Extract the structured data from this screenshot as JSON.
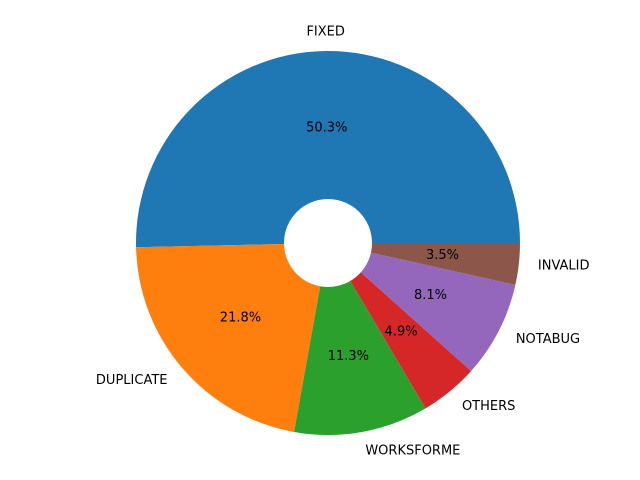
{
  "chart_data": {
    "type": "pie",
    "donut": true,
    "start_angle_deg": 0,
    "direction": "counterclockwise",
    "title": "",
    "slices": [
      {
        "label": "FIXED",
        "value": 50.3,
        "pct_label": "50.3%",
        "color": "#1f77b4"
      },
      {
        "label": "DUPLICATE",
        "value": 21.8,
        "pct_label": "21.8%",
        "color": "#ff7f0e"
      },
      {
        "label": "WORKSFORME",
        "value": 11.3,
        "pct_label": "11.3%",
        "color": "#2ca02c"
      },
      {
        "label": "OTHERS",
        "value": 4.9,
        "pct_label": "4.9%",
        "color": "#d62728"
      },
      {
        "label": "NOTABUG",
        "value": 8.1,
        "pct_label": "8.1%",
        "color": "#9467bd"
      },
      {
        "label": "INVALID",
        "value": 3.5,
        "pct_label": "3.5%",
        "color": "#8c564b"
      }
    ]
  }
}
